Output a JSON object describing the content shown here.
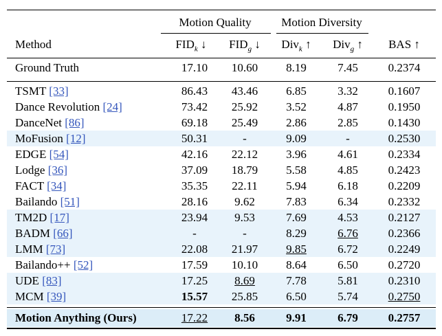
{
  "header": {
    "group_quality": "Motion Quality",
    "group_diversity": "Motion Diversity",
    "col_method": "Method",
    "col_fidk": "FID",
    "col_fidk_sub": "k",
    "col_fidk_arrow": "↓",
    "col_fidg": "FID",
    "col_fidg_sub": "g",
    "col_fidg_arrow": "↓",
    "col_divk": "Div",
    "col_divk_sub": "k",
    "col_divk_arrow": "↑",
    "col_divg": "Div",
    "col_divg_sub": "g",
    "col_divg_arrow": "↑",
    "col_bas": "BAS ↑"
  },
  "ground_truth": {
    "method": "Ground Truth",
    "fidk": "17.10",
    "fidg": "10.60",
    "divk": "8.19",
    "divg": "7.45",
    "bas": "0.2374"
  },
  "rows": [
    {
      "method": "TSMT ",
      "cite": "[33]",
      "fidk": "86.43",
      "fidg": "43.46",
      "divk": "6.85",
      "divg": "3.32",
      "bas": "0.1607"
    },
    {
      "method": "Dance Revolution ",
      "cite": "[24]",
      "fidk": "73.42",
      "fidg": "25.92",
      "divk": "3.52",
      "divg": "4.87",
      "bas": "0.1950"
    },
    {
      "method": "DanceNet ",
      "cite": "[86]",
      "fidk": "69.18",
      "fidg": "25.49",
      "divk": "2.86",
      "divg": "2.85",
      "bas": "0.1430"
    },
    {
      "method": "MoFusion ",
      "cite": "[12]",
      "fidk": "50.31",
      "fidg": "-",
      "divk": "9.09",
      "divg": "-",
      "bas": "0.2530"
    },
    {
      "method": "EDGE ",
      "cite": "[54]",
      "fidk": "42.16",
      "fidg": "22.12",
      "divk": "3.96",
      "divg": "4.61",
      "bas": "0.2334"
    },
    {
      "method": "Lodge ",
      "cite": "[36]",
      "fidk": "37.09",
      "fidg": "18.79",
      "divk": "5.58",
      "divg": "4.85",
      "bas": "0.2423"
    },
    {
      "method": "FACT ",
      "cite": "[34]",
      "fidk": "35.35",
      "fidg": "22.11",
      "divk": "5.94",
      "divg": "6.18",
      "bas": "0.2209"
    },
    {
      "method": "Bailando ",
      "cite": "[51]",
      "fidk": "28.16",
      "fidg": "9.62",
      "divk": "7.83",
      "divg": "6.34",
      "bas": "0.2332"
    },
    {
      "method": "TM2D ",
      "cite": "[17]",
      "fidk": "23.94",
      "fidg": "9.53",
      "divk": "7.69",
      "divg": "4.53",
      "bas": "0.2127"
    },
    {
      "method": "BADM ",
      "cite": "[66]",
      "fidk": "-",
      "fidg": "-",
      "divk": "8.29",
      "divg": "6.76",
      "bas": "0.2366"
    },
    {
      "method": "LMM ",
      "cite": "[73]",
      "fidk": "22.08",
      "fidg": "21.97",
      "divk": "9.85",
      "divg": "6.72",
      "bas": "0.2249"
    },
    {
      "method": "Bailando++ ",
      "cite": "[52]",
      "fidk": "17.59",
      "fidg": "10.10",
      "divk": "8.64",
      "divg": "6.50",
      "bas": "0.2720"
    },
    {
      "method": "UDE ",
      "cite": "[83]",
      "fidk": "17.25",
      "fidg": "8.69",
      "divk": "7.78",
      "divg": "5.81",
      "bas": "0.2310"
    },
    {
      "method": "MCM ",
      "cite": "[39]",
      "fidk": "15.57",
      "fidg": "25.85",
      "divk": "6.50",
      "divg": "5.74",
      "bas": "0.2750"
    }
  ],
  "final": {
    "method": "Motion Anything (Ours)",
    "fidk": "17.22",
    "fidg": "8.56",
    "divk": "9.91",
    "divg": "6.79",
    "bas": "0.2757"
  }
}
